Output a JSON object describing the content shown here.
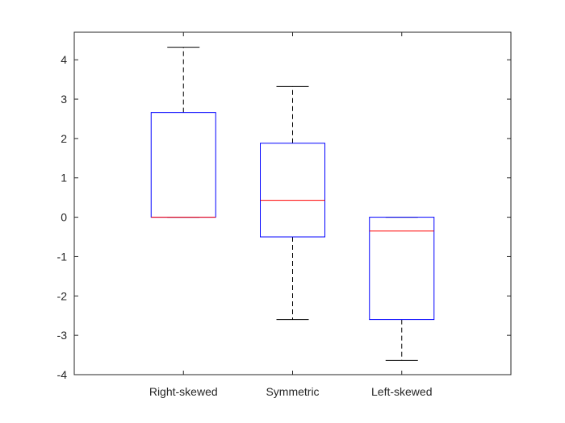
{
  "chart_data": {
    "type": "boxplot",
    "title": "",
    "xlabel": "",
    "ylabel": "",
    "ylim": [
      -4,
      4.7
    ],
    "yticks": [
      -4,
      -3,
      -2,
      -1,
      0,
      1,
      2,
      3,
      4
    ],
    "ytick_labels": [
      "-4",
      "-3",
      "-2",
      "-1",
      "0",
      "1",
      "2",
      "3",
      "4"
    ],
    "grid": false,
    "categories": [
      "Right-skewed",
      "Symmetric",
      "Left-skewed"
    ],
    "boxes": [
      {
        "name": "Right-skewed",
        "whisker_low": 0,
        "q1": 0,
        "median": 0,
        "q3": 2.66,
        "whisker_high": 4.32
      },
      {
        "name": "Symmetric",
        "whisker_low": -2.6,
        "q1": -0.5,
        "median": 0.43,
        "q3": 1.88,
        "whisker_high": 3.32
      },
      {
        "name": "Left-skewed",
        "whisker_low": -3.64,
        "q1": -2.6,
        "median": -0.35,
        "q3": 0,
        "whisker_high": 0
      }
    ],
    "colors": {
      "box": "#0000ff",
      "median": "#ff0000",
      "whisker": "#000000",
      "axis": "#262626"
    }
  }
}
